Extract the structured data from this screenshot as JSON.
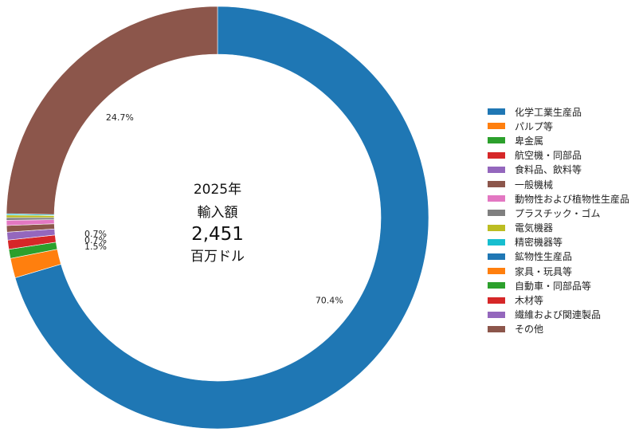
{
  "chart_data": {
    "type": "pie",
    "style": "donut",
    "center": {
      "year": "2025年",
      "label": "輸入額",
      "total": "2,451",
      "unit": "百万ドル"
    },
    "categories": [
      "化学工業生産品",
      "パルプ等",
      "卑金属",
      "航空機・同部品",
      "食料品、飲料等",
      "一般機械",
      "動物性および植物性生産品",
      "プラスチック・ゴム",
      "電気機器",
      "精密機器等",
      "鉱物性生産品",
      "家具・玩具等",
      "自動車・同部品等",
      "木材等",
      "繊維および関連製品",
      "その他"
    ],
    "values": [
      70.4,
      1.5,
      0.7,
      0.7,
      0.6,
      0.5,
      0.4,
      0.2,
      0.2,
      0.1,
      0.0,
      0.0,
      0.0,
      0.0,
      0.0,
      24.7
    ],
    "colors": [
      "#1f77b4",
      "#ff7f0e",
      "#2ca02c",
      "#d62728",
      "#9467bd",
      "#8c564b",
      "#e377c2",
      "#7f7f7f",
      "#bcbd22",
      "#17becf",
      "#1f77b4",
      "#ff7f0e",
      "#2ca02c",
      "#d62728",
      "#9467bd",
      "#8c564b"
    ],
    "data_labels": [
      "70.4%",
      "1.5%",
      "0.7%",
      "0.7%",
      "",
      "",
      "",
      "",
      "",
      "",
      "",
      "",
      "",
      "",
      "",
      "24.7%"
    ],
    "legend_position": "right"
  }
}
